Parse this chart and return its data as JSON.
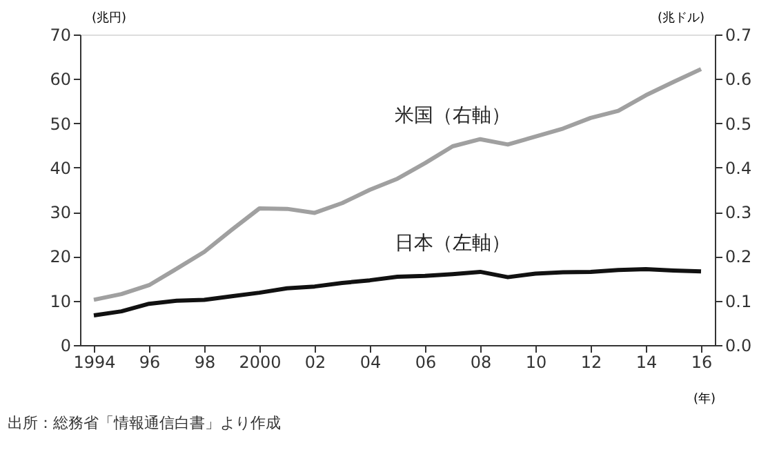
{
  "chart_data": {
    "type": "line",
    "xlabel": "(年)",
    "ylabel": "(兆円)",
    "y2label": "(兆ドル)",
    "x": [
      1994,
      1995,
      1996,
      1997,
      1998,
      1999,
      2000,
      2001,
      2002,
      2003,
      2004,
      2005,
      2006,
      2007,
      2008,
      2009,
      2010,
      2011,
      2012,
      2013,
      2014,
      2015,
      2016
    ],
    "xlim": [
      1993.5,
      2016.5
    ],
    "xticks": [
      1994,
      {
        "value": 1996,
        "label": "96"
      },
      {
        "value": 1998,
        "label": "98"
      },
      2000,
      {
        "value": 2002,
        "label": "02"
      },
      {
        "value": 2004,
        "label": "04"
      },
      {
        "value": 2006,
        "label": "06"
      },
      {
        "value": 2008,
        "label": "08"
      },
      {
        "value": 2010,
        "label": "10"
      },
      {
        "value": 2012,
        "label": "12"
      },
      {
        "value": 2014,
        "label": "14"
      },
      {
        "value": 2016,
        "label": "16"
      }
    ],
    "ylim": [
      0,
      70
    ],
    "yticks": [
      0,
      10,
      20,
      30,
      40,
      50,
      60,
      70
    ],
    "y2lim": [
      0,
      0.7
    ],
    "y2ticks": [
      {
        "value": 0,
        "label": "0.0"
      },
      0.1,
      0.2,
      0.3,
      0.4,
      0.5,
      0.6,
      0.7
    ],
    "series": [
      {
        "name": "米国（右軸）",
        "color": "#a0a0a0",
        "axis": "y2",
        "values": [
          0.102,
          0.115,
          0.135,
          0.172,
          0.21,
          0.26,
          0.308,
          0.307,
          0.298,
          0.32,
          0.35,
          0.375,
          0.41,
          0.448,
          0.464,
          0.452,
          0.47,
          0.488,
          0.512,
          0.528,
          0.563,
          0.593,
          0.622
        ]
      },
      {
        "name": "日本（左軸）",
        "color": "#111111",
        "values": [
          6.7,
          7.6,
          9.3,
          10.0,
          10.2,
          11.0,
          11.8,
          12.8,
          13.2,
          14.0,
          14.6,
          15.4,
          15.6,
          16.0,
          16.5,
          15.3,
          16.1,
          16.4,
          16.5,
          16.9,
          17.1,
          16.8,
          16.6
        ]
      }
    ],
    "annotations": [
      "出所：総務省「情報通信白書」より作成"
    ],
    "grid": false,
    "legend": false,
    "marker": "none",
    "line_style": "solid"
  }
}
